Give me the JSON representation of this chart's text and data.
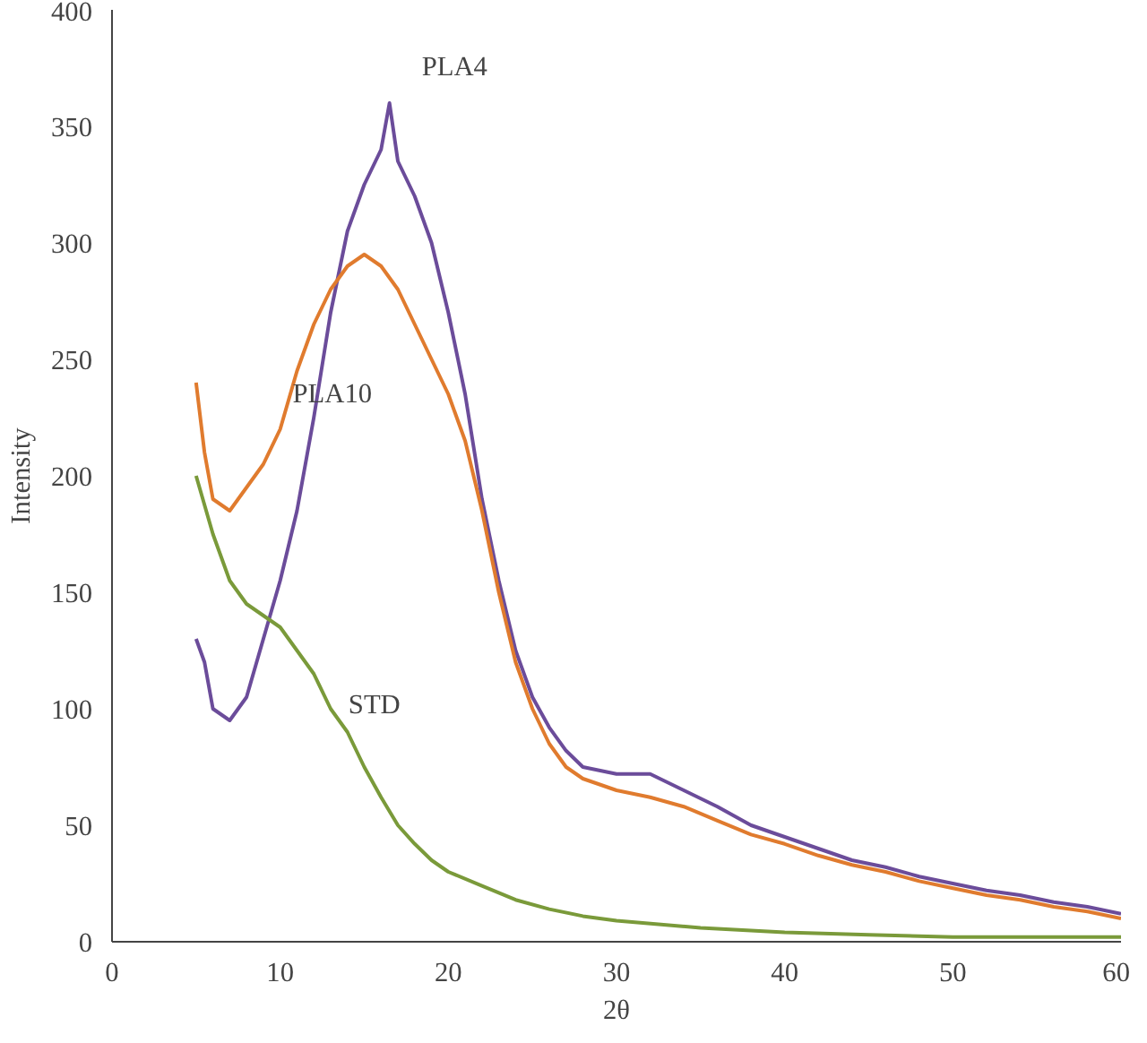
{
  "chart_data": {
    "type": "line",
    "xlabel": "2θ",
    "ylabel": "Intensity",
    "xlim": [
      0,
      60
    ],
    "ylim": [
      0,
      400
    ],
    "xticks": [
      0,
      10,
      20,
      30,
      40,
      50,
      60
    ],
    "yticks": [
      0,
      50,
      100,
      150,
      200,
      250,
      300,
      350,
      400
    ],
    "grid": false,
    "marker": "none",
    "line_style": "solid",
    "series": [
      {
        "name": "PLA4",
        "color": "#6b4c9a",
        "x": [
          5,
          5.5,
          6,
          7,
          8,
          9,
          10,
          11,
          12,
          13,
          14,
          15,
          16,
          16.5,
          17,
          18,
          19,
          20,
          21,
          22,
          23,
          24,
          25,
          26,
          27,
          28,
          30,
          32,
          34,
          36,
          38,
          40,
          42,
          44,
          46,
          48,
          50,
          52,
          54,
          56,
          58,
          60
        ],
        "values": [
          130,
          120,
          100,
          95,
          105,
          130,
          155,
          185,
          225,
          270,
          305,
          325,
          340,
          360,
          335,
          320,
          300,
          270,
          235,
          190,
          155,
          125,
          105,
          92,
          82,
          75,
          72,
          72,
          65,
          58,
          50,
          45,
          40,
          35,
          32,
          28,
          25,
          22,
          20,
          17,
          15,
          12
        ]
      },
      {
        "name": "PLA10",
        "color": "#e07b2e",
        "x": [
          5,
          5.5,
          6,
          7,
          8,
          9,
          10,
          11,
          12,
          13,
          14,
          15,
          16,
          17,
          18,
          19,
          20,
          21,
          22,
          23,
          24,
          25,
          26,
          27,
          28,
          30,
          32,
          34,
          36,
          38,
          40,
          42,
          44,
          46,
          48,
          50,
          52,
          54,
          56,
          58,
          60
        ],
        "values": [
          240,
          210,
          190,
          185,
          195,
          205,
          220,
          245,
          265,
          280,
          290,
          295,
          290,
          280,
          265,
          250,
          235,
          215,
          185,
          150,
          120,
          100,
          85,
          75,
          70,
          65,
          62,
          58,
          52,
          46,
          42,
          37,
          33,
          30,
          26,
          23,
          20,
          18,
          15,
          13,
          10
        ]
      },
      {
        "name": "STD",
        "color": "#7a9a3a",
        "x": [
          5,
          6,
          7,
          8,
          9,
          10,
          11,
          12,
          13,
          14,
          15,
          16,
          17,
          18,
          19,
          20,
          22,
          24,
          26,
          28,
          30,
          35,
          40,
          45,
          50,
          55,
          60
        ],
        "values": [
          200,
          175,
          155,
          145,
          140,
          135,
          125,
          115,
          100,
          90,
          75,
          62,
          50,
          42,
          35,
          30,
          24,
          18,
          14,
          11,
          9,
          6,
          4,
          3,
          2,
          2,
          2
        ]
      }
    ]
  }
}
